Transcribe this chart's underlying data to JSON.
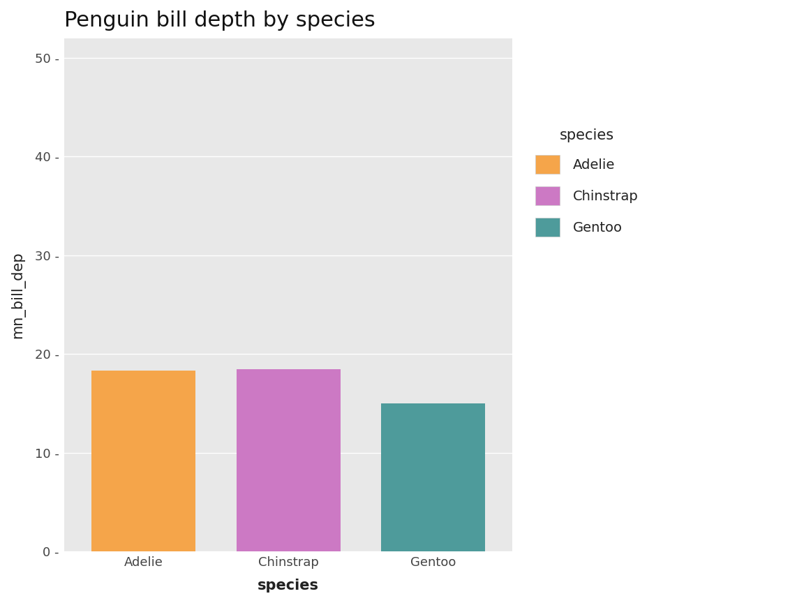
{
  "title": "Penguin bill depth by species",
  "xlabel": "species",
  "ylabel": "mn_bill_dep",
  "categories": [
    "Adelie",
    "Chinstrap",
    "Gentoo"
  ],
  "values": [
    18.35,
    18.43,
    14.98
  ],
  "bar_colors": [
    "#F5A54A",
    "#CC79C4",
    "#4E9B9B"
  ],
  "legend_title": "species",
  "legend_labels": [
    "Adelie",
    "Chinstrap",
    "Gentoo"
  ],
  "legend_colors": [
    "#F5A54A",
    "#CC79C4",
    "#4E9B9B"
  ],
  "ylim": [
    0,
    52
  ],
  "yticks": [
    0,
    10,
    20,
    30,
    40,
    50
  ],
  "background_color": "#FFFFFF",
  "plot_bg_color": "#E8E8E8",
  "grid_color": "#FFFFFF",
  "title_fontsize": 22,
  "axis_label_fontsize": 15,
  "tick_fontsize": 13,
  "legend_fontsize": 14,
  "legend_title_fontsize": 15
}
